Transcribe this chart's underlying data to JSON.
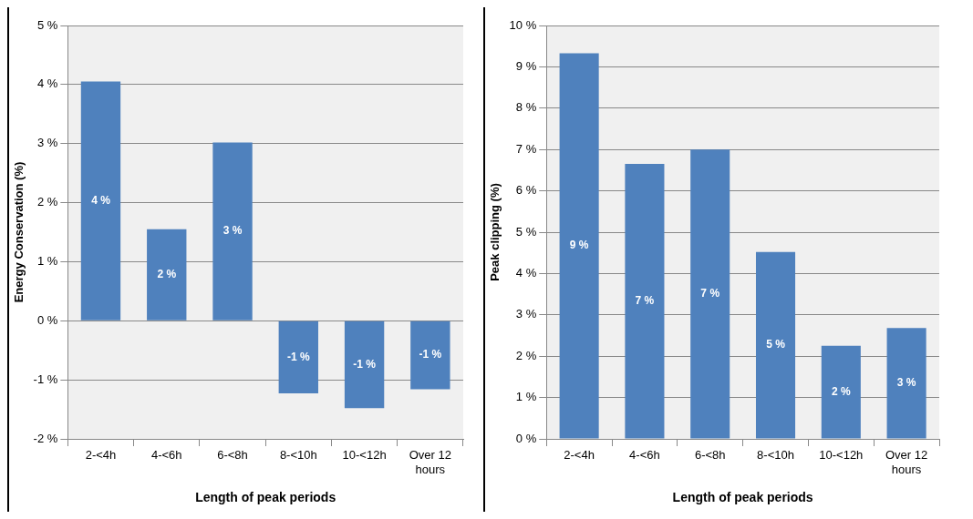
{
  "chart_data": [
    {
      "type": "bar",
      "xlabel": "Length of peak periods",
      "ylabel": "Energy Conservation (%)",
      "categories": [
        "2-<4h",
        "4-<6h",
        "6-<8h",
        "8-<10h",
        "10-<12h",
        "Over 12 hours"
      ],
      "values": [
        4.05,
        1.55,
        3.02,
        -1.23,
        -1.48,
        -1.16
      ],
      "color": "#4f81bd",
      "value_labels": [
        "4 %",
        "2 %",
        "3 %",
        "-1 %",
        "-1 %",
        "-1 %"
      ],
      "ylim": [
        -2,
        5
      ],
      "yticks": [
        {
          "value": -2,
          "label": "-2 %"
        },
        {
          "value": -1,
          "label": "-1 %"
        },
        {
          "value": 0,
          "label": "0 %"
        },
        {
          "value": 1,
          "label": "1 %"
        },
        {
          "value": 2,
          "label": "2 %"
        },
        {
          "value": 3,
          "label": "3 %"
        },
        {
          "value": 4,
          "label": "4 %"
        },
        {
          "value": 5,
          "label": "5 %"
        }
      ],
      "grid": "y",
      "legend": false
    },
    {
      "type": "bar",
      "xlabel": "Length of peak periods",
      "ylabel": "Peak clipping (%)",
      "categories": [
        "2-<4h",
        "4-<6h",
        "6-<8h",
        "8-<10h",
        "10-<12h",
        "Over 12 hours"
      ],
      "values": [
        9.33,
        6.65,
        7.0,
        4.52,
        2.25,
        2.68
      ],
      "color": "#4f81bd",
      "value_labels": [
        "9 %",
        "7 %",
        "7 %",
        "5 %",
        "2 %",
        "3 %"
      ],
      "ylim": [
        0,
        10
      ],
      "yticks": [
        {
          "value": 0,
          "label": "0 %"
        },
        {
          "value": 1,
          "label": "1 %"
        },
        {
          "value": 2,
          "label": "2 %"
        },
        {
          "value": 3,
          "label": "3 %"
        },
        {
          "value": 4,
          "label": "4 %"
        },
        {
          "value": 5,
          "label": "5 %"
        },
        {
          "value": 6,
          "label": "6 %"
        },
        {
          "value": 7,
          "label": "7 %"
        },
        {
          "value": 8,
          "label": "8 %"
        },
        {
          "value": 9,
          "label": "9 %"
        },
        {
          "value": 10,
          "label": "10 %"
        }
      ],
      "grid": "y",
      "legend": false
    }
  ]
}
